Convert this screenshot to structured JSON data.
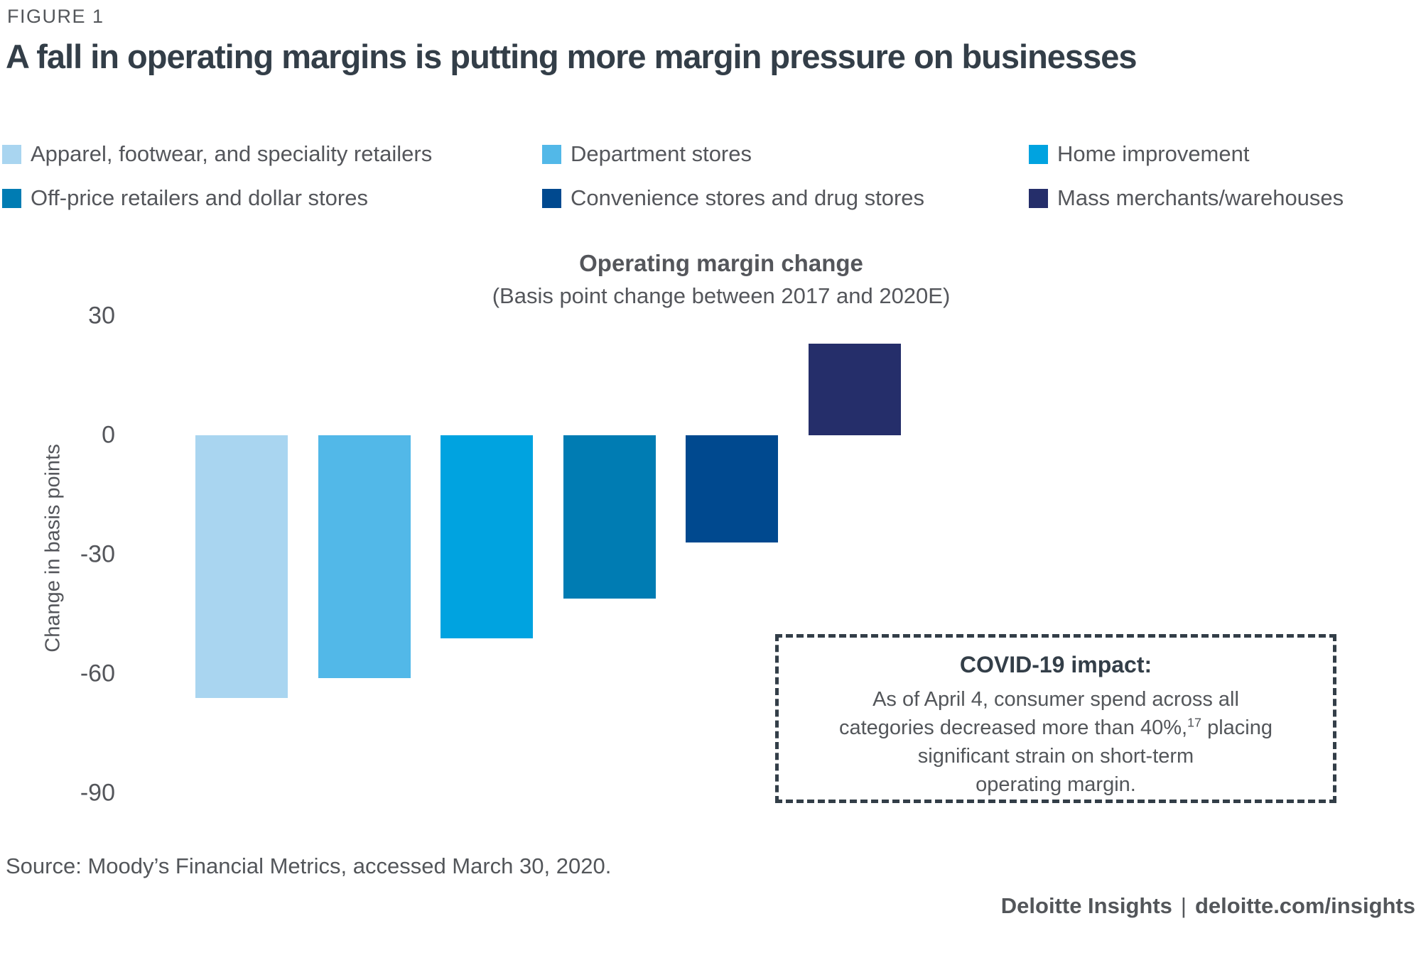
{
  "figure": {
    "label": "FIGURE 1",
    "title": "A fall in operating margins is putting more margin pressure on businesses"
  },
  "legend": {
    "items": [
      {
        "label": "Apparel, footwear, and speciality retailers",
        "color": "#A9D5F0"
      },
      {
        "label": "Department stores",
        "color": "#52B8E8"
      },
      {
        "label": "Home improvement",
        "color": "#00A3E0"
      },
      {
        "label": "Off-price retailers and dollar stores",
        "color": "#007CB3"
      },
      {
        "label": "Convenience stores and drug stores",
        "color": "#00498F"
      },
      {
        "label": "Mass merchants/warehouses",
        "color": "#252E6A"
      }
    ]
  },
  "chart_data": {
    "type": "bar",
    "title": "Operating margin change",
    "subtitle": "(Basis point change between 2017 and 2020E)",
    "ylabel": "Change in basis points",
    "unit": "basis points",
    "yticks": [
      30,
      0,
      -30,
      -60,
      -90
    ],
    "ylim": [
      -90,
      30
    ],
    "grid": false,
    "legend_position": "top",
    "categories": [
      "Apparel, footwear, and speciality retailers",
      "Department stores",
      "Home improvement",
      "Off-price retailers and dollar stores",
      "Convenience stores and drug stores",
      "Mass merchants/warehouses"
    ],
    "values": [
      -66,
      -61,
      -51,
      -41,
      -27,
      23
    ],
    "colors": [
      "#A9D5F0",
      "#52B8E8",
      "#00A3E0",
      "#007CB3",
      "#00498F",
      "#252E6A"
    ]
  },
  "callout": {
    "title": "COVID-19 impact:",
    "lines": [
      {
        "text": "As of April 4, consumer spend across all"
      },
      {
        "text": "categories decreased more than 40%,",
        "sup": "17",
        "after": " placing"
      },
      {
        "text": "significant strain on short-term"
      },
      {
        "text": "operating margin."
      }
    ]
  },
  "source": "Source: Moody’s Financial Metrics, accessed March 30, 2020.",
  "footer": {
    "brand": "Deloitte Insights",
    "separator": "|",
    "url": "deloitte.com/insights"
  }
}
